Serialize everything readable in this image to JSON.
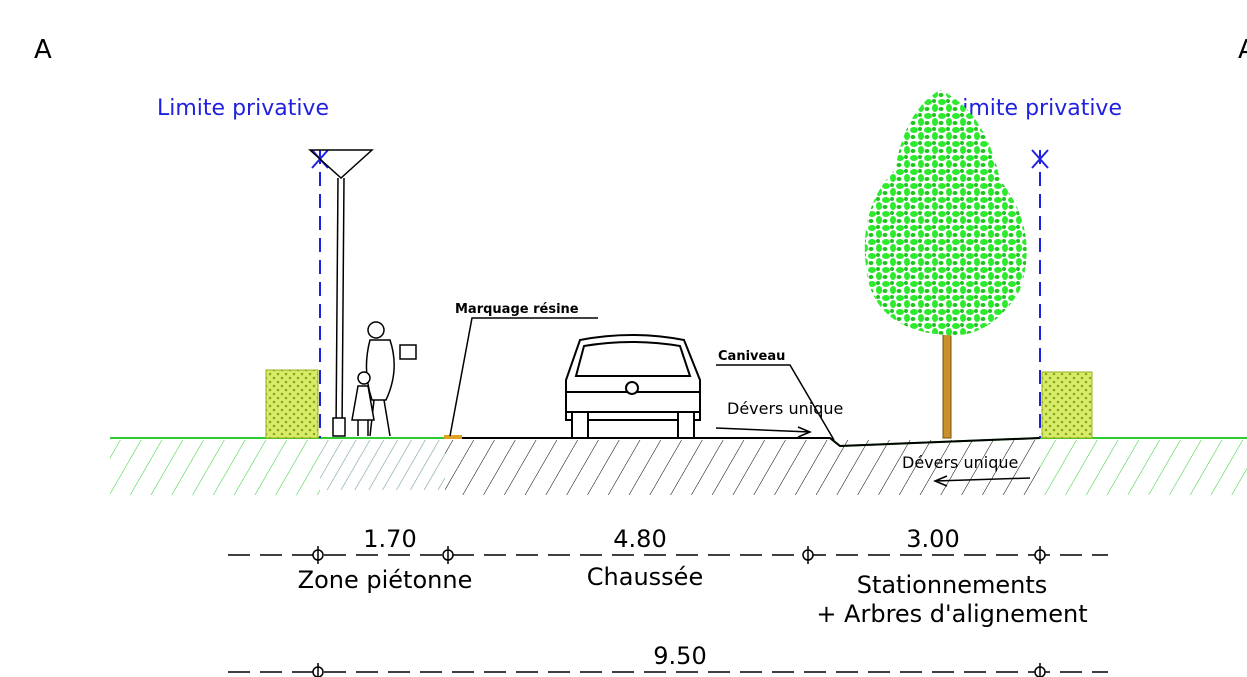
{
  "section_marks": {
    "left": "A",
    "right": "A"
  },
  "limits": {
    "left": "Limite privative",
    "right": "Limite privative"
  },
  "annotations": {
    "marking": "Marquage résine",
    "gutter": "Caniveau",
    "slope_left": "Dévers unique",
    "slope_right": "Dévers unique"
  },
  "dimensions": [
    {
      "width": "1.70",
      "label": "Zone piétonne"
    },
    {
      "width": "4.80",
      "label": "Chaussée"
    },
    {
      "width": "3.00",
      "label": "Stationnements",
      "sublabel": "+ Arbres d'alignement"
    }
  ],
  "total": {
    "width": "9.50"
  }
}
